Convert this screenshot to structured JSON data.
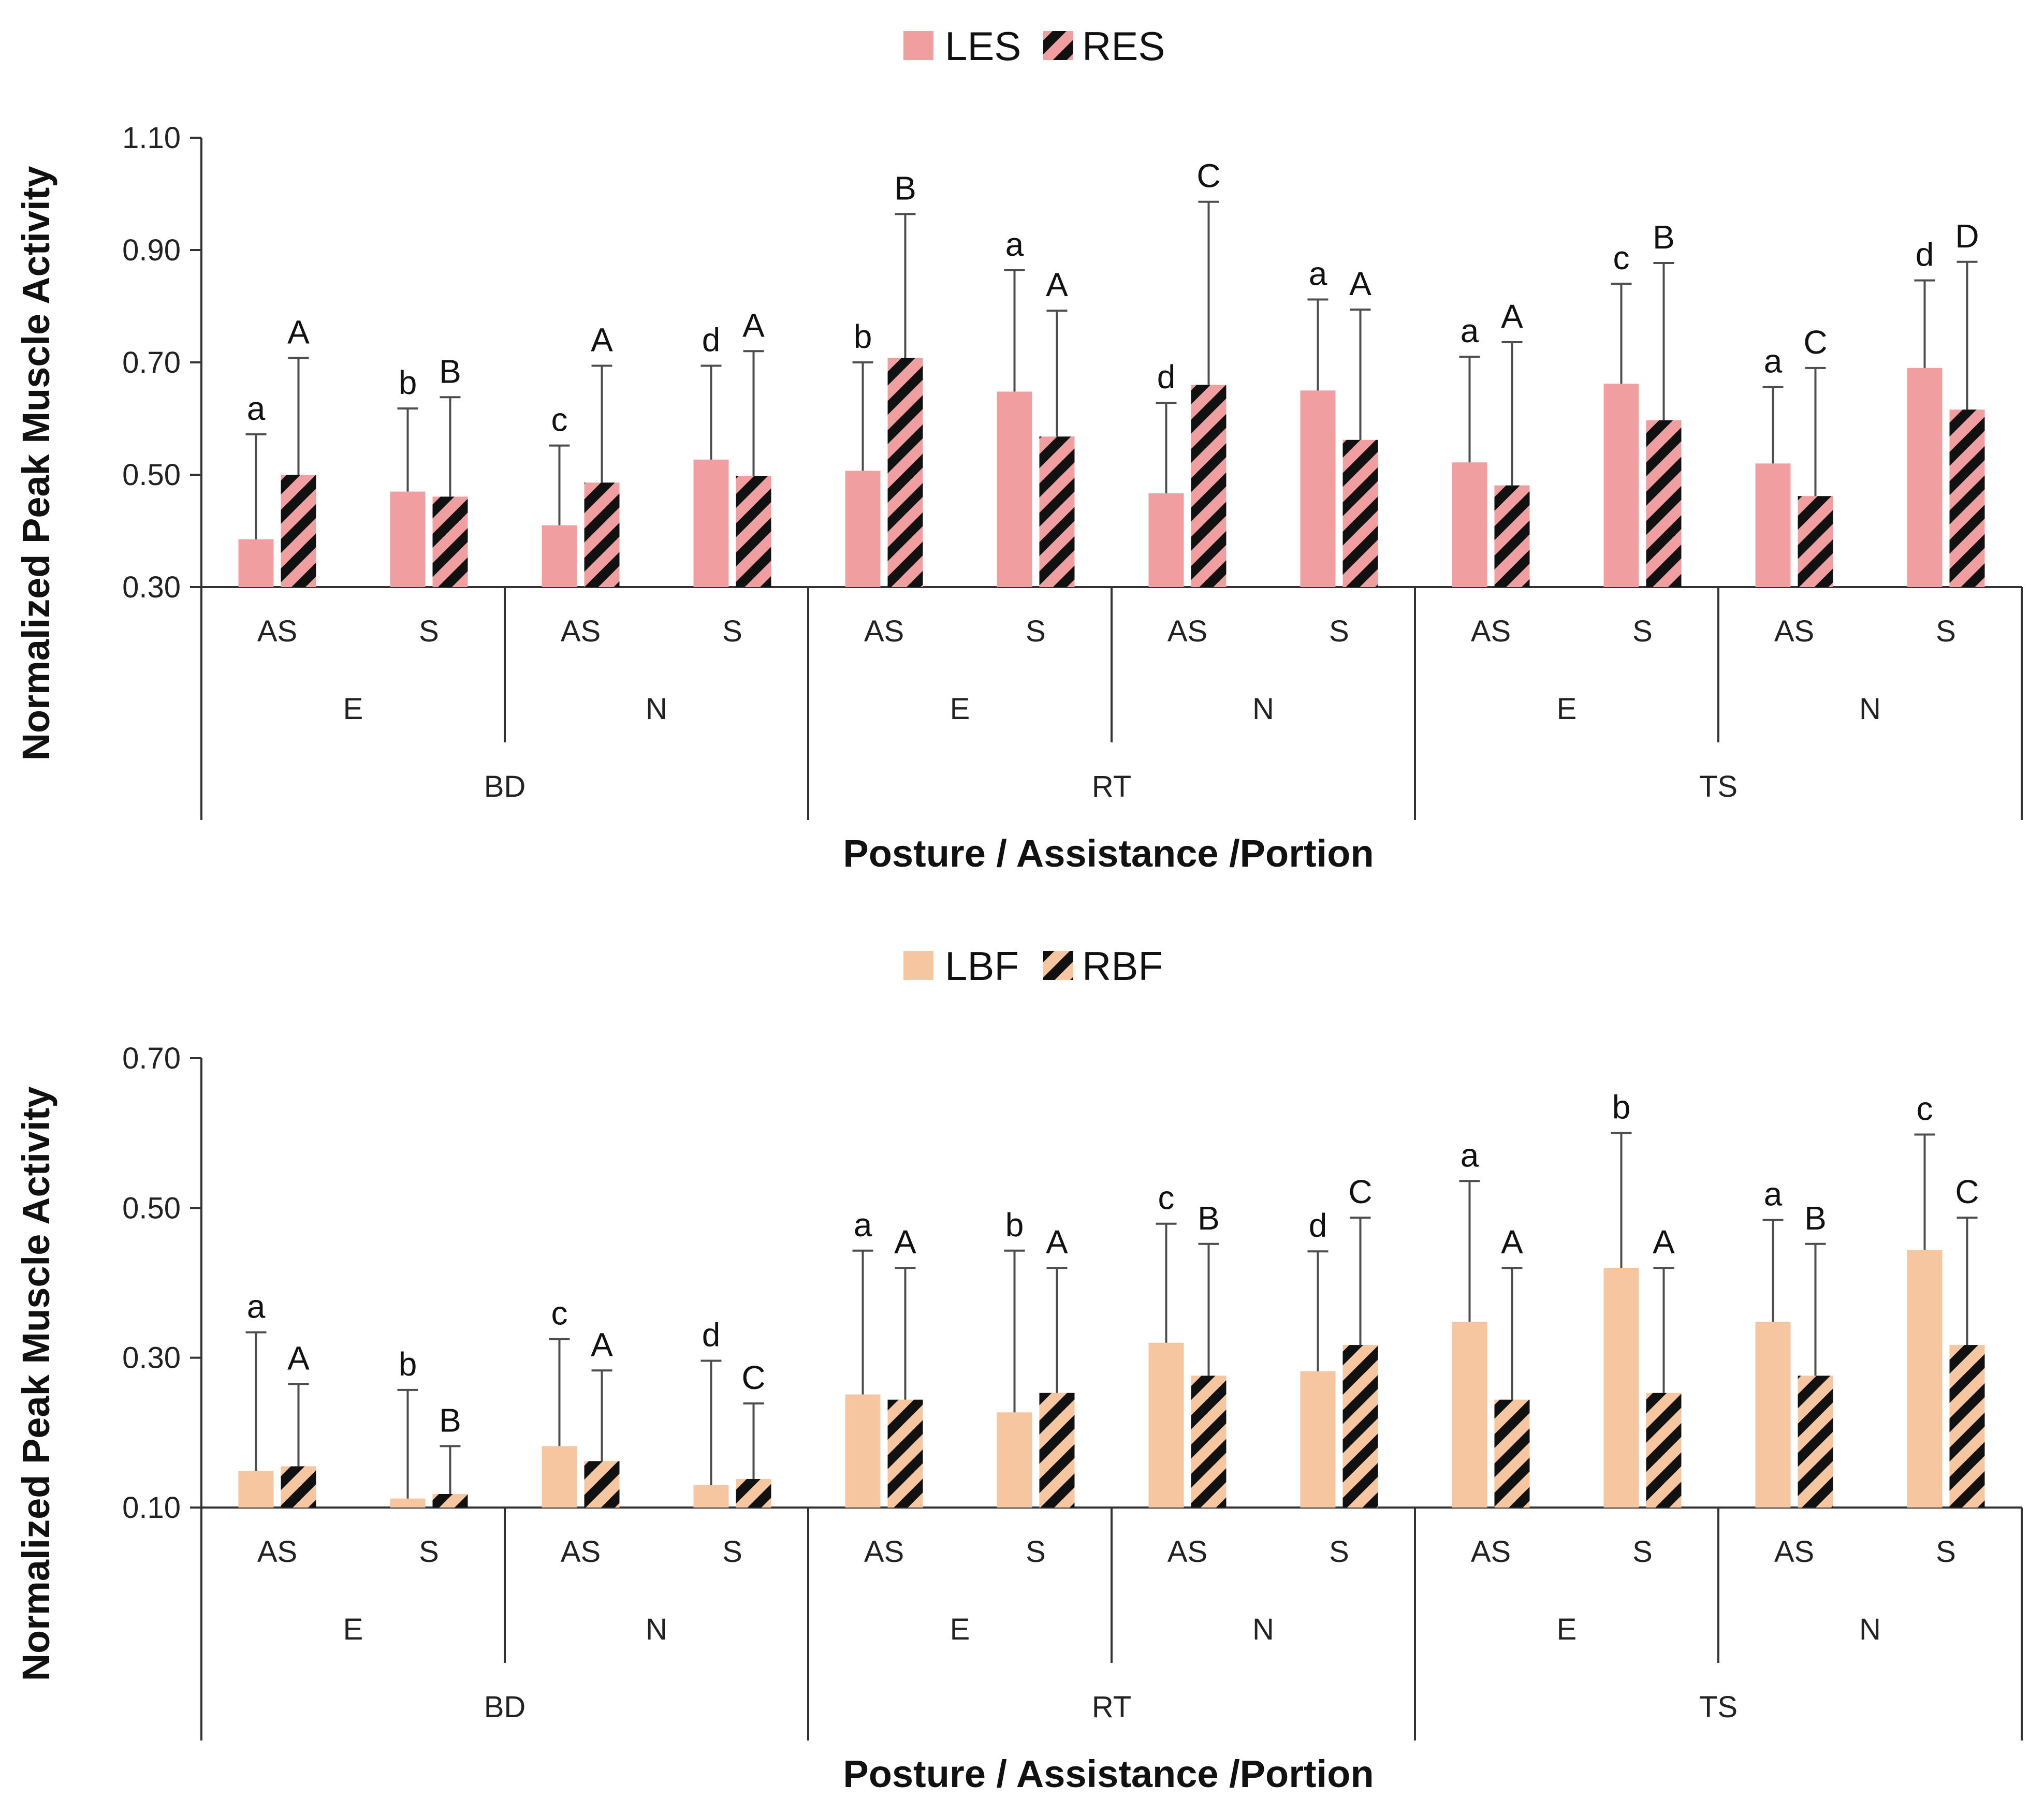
{
  "colors": {
    "les": "#ef9f9f",
    "lbf": "#f5c6a0",
    "stripe": "#111111",
    "axis": "#333333",
    "error_bar": "#4d4d4d"
  },
  "chart_data": [
    {
      "type": "bar",
      "legend": {
        "position": "top-center",
        "entries": [
          "LES",
          "RES"
        ]
      },
      "ylabel": "Normalized Peak Muscle Activity",
      "xlabel": "Posture / Assistance /Portion",
      "ylim": [
        0.3,
        1.1
      ],
      "yticks": [
        "1.10",
        "0.90",
        "0.70",
        "0.50",
        "0.30"
      ],
      "ytick_values": [
        1.1,
        0.9,
        0.7,
        0.5,
        0.3
      ],
      "posture_labels": [
        "BD",
        "RT",
        "TS"
      ],
      "assistance_labels": [
        "E",
        "N",
        "E",
        "N",
        "E",
        "N"
      ],
      "portion_labels": [
        "AS",
        "S",
        "AS",
        "S",
        "AS",
        "S",
        "AS",
        "S",
        "AS",
        "S",
        "AS",
        "S"
      ],
      "series": [
        {
          "name": "LES",
          "pattern": "solid",
          "values": [
            0.385,
            0.47,
            0.41,
            0.527,
            0.507,
            0.648,
            0.467,
            0.65,
            0.522,
            0.662,
            0.52,
            0.69
          ],
          "error_upper": [
            0.572,
            0.618,
            0.552,
            0.694,
            0.7,
            0.864,
            0.628,
            0.812,
            0.71,
            0.84,
            0.656,
            0.846
          ],
          "letters": [
            "a",
            "b",
            "c",
            "d",
            "b",
            "a",
            "d",
            "a",
            "a",
            "c",
            "a",
            "d"
          ]
        },
        {
          "name": "RES",
          "pattern": "striped",
          "values": [
            0.5,
            0.461,
            0.486,
            0.498,
            0.708,
            0.568,
            0.66,
            0.562,
            0.481,
            0.597,
            0.462,
            0.616
          ],
          "error_upper": [
            0.708,
            0.638,
            0.694,
            0.72,
            0.964,
            0.792,
            0.986,
            0.794,
            0.736,
            0.877,
            0.69,
            0.879
          ],
          "letters": [
            "A",
            "B",
            "A",
            "A",
            "B",
            "A",
            "C",
            "A",
            "A",
            "B",
            "C",
            "D"
          ]
        }
      ]
    },
    {
      "type": "bar",
      "legend": {
        "position": "top-center",
        "entries": [
          "LBF",
          "RBF"
        ]
      },
      "ylabel": "Normalized Peak Muscle Activity",
      "xlabel": "Posture / Assistance /Portion",
      "ylim": [
        0.1,
        0.7
      ],
      "yticks": [
        "0.70",
        "0.50",
        "0.30",
        "0.10"
      ],
      "ytick_values": [
        0.7,
        0.5,
        0.3,
        0.1
      ],
      "posture_labels": [
        "BD",
        "RT",
        "TS"
      ],
      "assistance_labels": [
        "E",
        "N",
        "E",
        "N",
        "E",
        "N"
      ],
      "portion_labels": [
        "AS",
        "S",
        "AS",
        "S",
        "AS",
        "S",
        "AS",
        "S",
        "AS",
        "S",
        "AS",
        "S"
      ],
      "series": [
        {
          "name": "LBF",
          "pattern": "solid",
          "values": [
            0.149,
            0.112,
            0.182,
            0.13,
            0.251,
            0.227,
            0.32,
            0.282,
            0.348,
            0.42,
            0.348,
            0.444
          ],
          "error_upper": [
            0.334,
            0.257,
            0.325,
            0.296,
            0.443,
            0.443,
            0.479,
            0.442,
            0.536,
            0.6,
            0.484,
            0.598
          ],
          "letters": [
            "a",
            "b",
            "c",
            "d",
            "a",
            "b",
            "c",
            "d",
            "a",
            "b",
            "a",
            "c"
          ]
        },
        {
          "name": "RBF",
          "pattern": "striped",
          "values": [
            0.155,
            0.118,
            0.162,
            0.138,
            0.244,
            0.253,
            0.276,
            0.317,
            0.244,
            0.253,
            0.276,
            0.317
          ],
          "error_upper": [
            0.265,
            0.182,
            0.283,
            0.239,
            0.42,
            0.42,
            0.452,
            0.487,
            0.42,
            0.42,
            0.452,
            0.487
          ],
          "letters": [
            "A",
            "B",
            "A",
            "C",
            "A",
            "A",
            "B",
            "C",
            "A",
            "A",
            "B",
            "C"
          ]
        }
      ]
    }
  ]
}
